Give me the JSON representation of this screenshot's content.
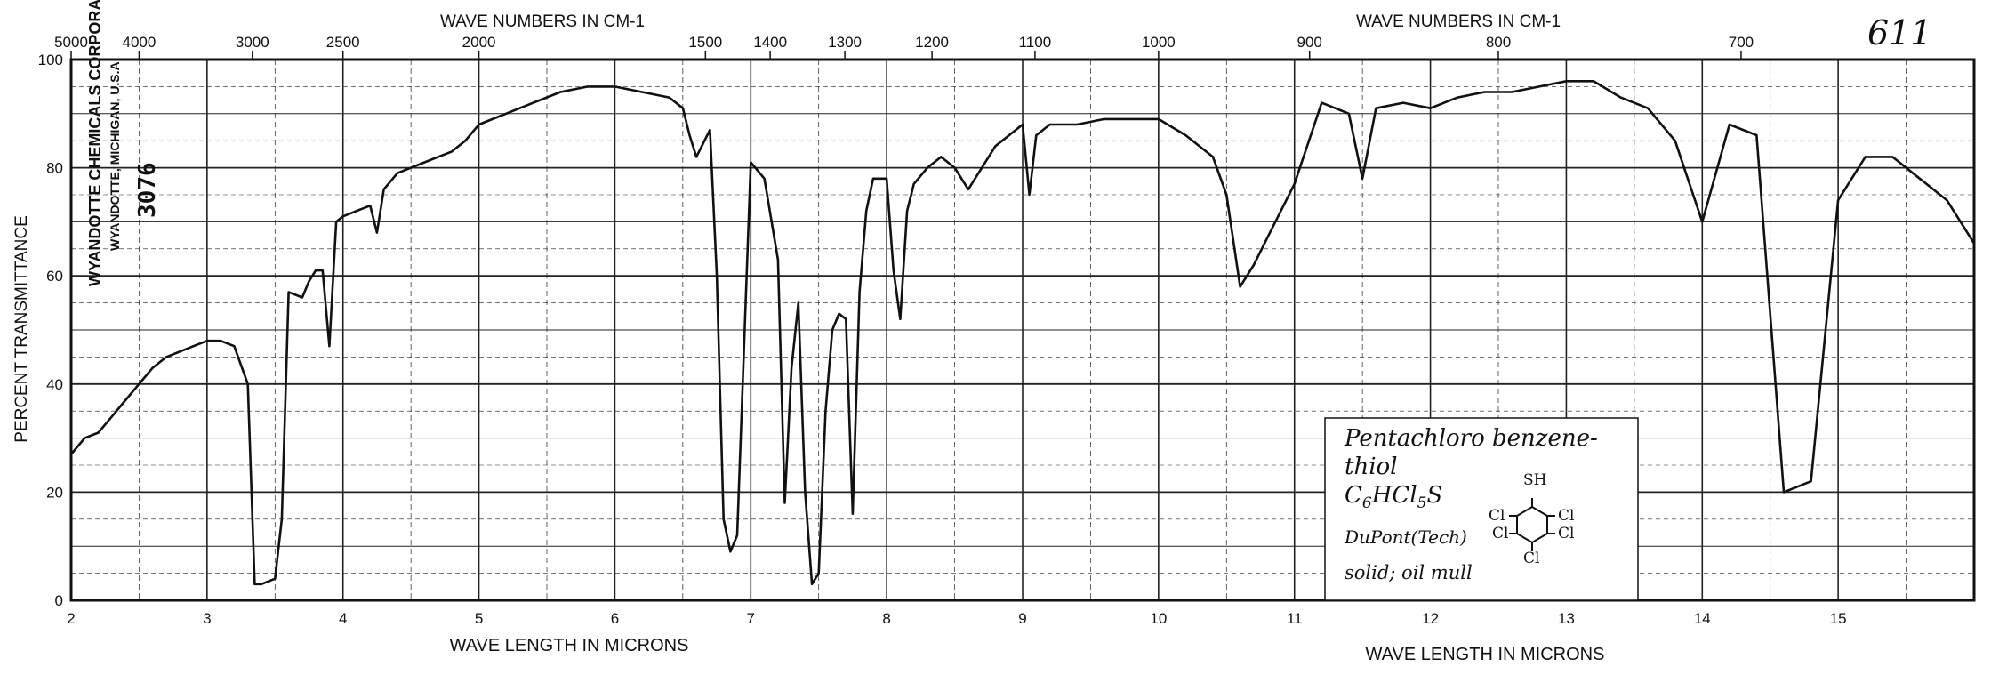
{
  "chart_data": {
    "type": "line",
    "title": "",
    "ylabel": "PERCENT TRANSMITTANCE",
    "xlabel_left": "WAVE LENGTH IN MICRONS",
    "xlabel_right": "WAVE LENGTH IN MICRONS",
    "top_label_left": "WAVE NUMBERS IN CM-1",
    "top_label_right": "WAVE NUMBERS IN CM-1",
    "ylim": [
      0,
      100
    ],
    "xlim": [
      2,
      16
    ],
    "x_ticks": [
      "2",
      "3",
      "4",
      "5",
      "6",
      "7",
      "8",
      "9",
      "10",
      "11",
      "12",
      "13",
      "14",
      "15"
    ],
    "y_ticks": [
      "0",
      "20",
      "40",
      "60",
      "80",
      "100"
    ],
    "wavenumber_ticks": [
      "5000",
      "4000",
      "3000",
      "2500",
      "2000",
      "1500",
      "1400",
      "1300",
      "1200",
      "1100",
      "1000",
      "900",
      "800",
      "700"
    ],
    "grid": true,
    "series": [
      {
        "x": [
          2.0,
          2.1,
          2.2,
          2.3,
          2.4,
          2.5,
          2.6,
          2.7,
          2.8,
          2.9,
          3.0,
          3.1,
          3.2,
          3.3,
          3.35,
          3.4,
          3.5,
          3.55,
          3.6,
          3.7,
          3.75,
          3.8,
          3.85,
          3.9,
          3.95,
          4.0,
          4.1,
          4.2,
          4.25,
          4.3,
          4.4,
          4.5,
          4.6,
          4.7,
          4.8,
          4.9,
          5.0,
          5.2,
          5.4,
          5.6,
          5.8,
          6.0,
          6.2,
          6.4,
          6.5,
          6.55,
          6.6,
          6.7,
          6.75,
          6.8,
          6.85,
          6.9,
          7.0,
          7.1,
          7.2,
          7.25,
          7.3,
          7.35,
          7.4,
          7.45,
          7.5,
          7.55,
          7.6,
          7.65,
          7.7,
          7.75,
          7.8,
          7.85,
          7.9,
          8.0,
          8.05,
          8.1,
          8.15,
          8.2,
          8.3,
          8.4,
          8.5,
          8.6,
          8.8,
          9.0,
          9.05,
          9.1,
          9.2,
          9.4,
          9.6,
          9.8,
          10.0,
          10.2,
          10.4,
          10.5,
          10.6,
          10.7,
          10.8,
          11.0,
          11.2,
          11.4,
          11.5,
          11.6,
          11.8,
          12.0,
          12.2,
          12.4,
          12.6,
          12.8,
          13.0,
          13.2,
          13.4,
          13.6,
          13.8,
          14.0,
          14.2,
          14.4,
          14.6,
          14.8,
          15.0,
          15.2,
          15.4,
          15.6,
          15.8,
          16.0
        ],
        "y": [
          27,
          30,
          31,
          34,
          37,
          40,
          43,
          45,
          46,
          47,
          48,
          48,
          47,
          40,
          3,
          3,
          4,
          15,
          57,
          56,
          59,
          61,
          61,
          47,
          70,
          71,
          72,
          73,
          68,
          76,
          79,
          80,
          81,
          82,
          83,
          85,
          88,
          90,
          92,
          94,
          95,
          95,
          94,
          93,
          91,
          86,
          82,
          87,
          60,
          15,
          9,
          12,
          81,
          78,
          63,
          18,
          43,
          55,
          20,
          3,
          5,
          35,
          50,
          53,
          52,
          16,
          57,
          72,
          78,
          78,
          61,
          52,
          72,
          77,
          80,
          82,
          80,
          76,
          84,
          88,
          75,
          86,
          88,
          88,
          89,
          89,
          89,
          86,
          82,
          75,
          58,
          62,
          67,
          77,
          92,
          90,
          78,
          91,
          92,
          91,
          93,
          94,
          94,
          95,
          96,
          96,
          93,
          91,
          85,
          70,
          88,
          86,
          20,
          22,
          74,
          82,
          82,
          78,
          74,
          66
        ]
      }
    ]
  },
  "chart_id": "611",
  "header_right": {
    "line1": "WYANDOTTE CHEMICALS CORPORATION",
    "line2": "WYANDOTTE, MICHIGAN, U.S.A.",
    "sample_number": "3076"
  },
  "annotation": {
    "compound_line1": "Pentachloro benzene-",
    "compound_line2": "thiol",
    "formula": "C6HCl5S",
    "source": "DuPont(Tech)",
    "phase": "solid; oil mull",
    "structure_labels": [
      "SH",
      "Cl",
      "Cl",
      "Cl",
      "Cl",
      "Cl"
    ]
  }
}
